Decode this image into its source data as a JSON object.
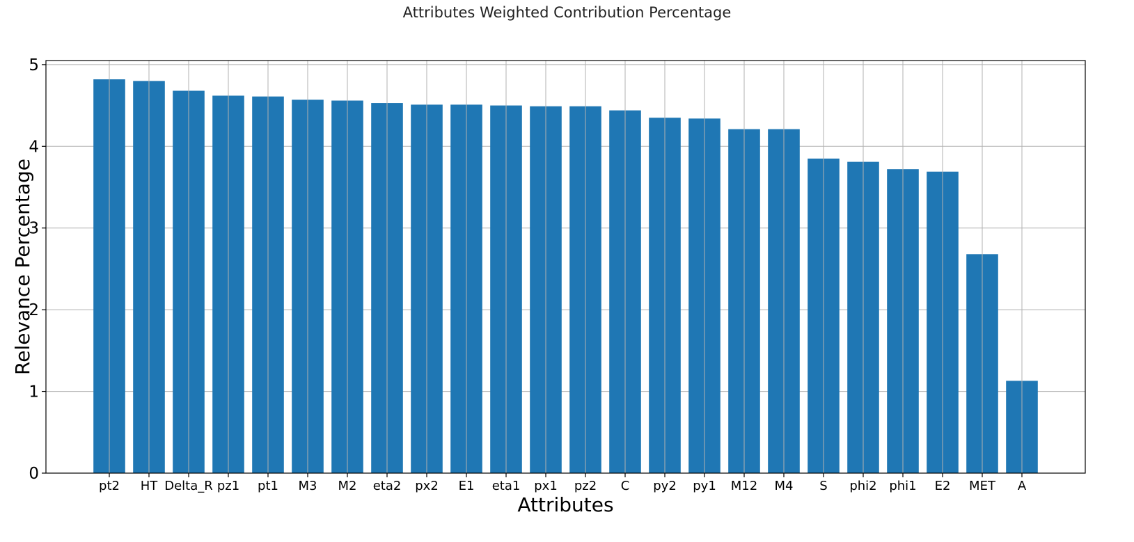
{
  "chart_data": {
    "type": "bar",
    "title": "Attributes Weighted Contribution Percentage",
    "xlabel": "Attributes",
    "ylabel": "Relevance Percentage",
    "categories": [
      "pt2",
      "HT",
      "Delta_R",
      "pz1",
      "pt1",
      "M3",
      "M2",
      "eta2",
      "px2",
      "E1",
      "eta1",
      "px1",
      "pz2",
      "C",
      "py2",
      "py1",
      "M12",
      "M4",
      "S",
      "phi2",
      "phi1",
      "E2",
      "MET",
      "A"
    ],
    "values": [
      4.82,
      4.8,
      4.68,
      4.62,
      4.61,
      4.57,
      4.56,
      4.53,
      4.51,
      4.51,
      4.5,
      4.49,
      4.49,
      4.44,
      4.35,
      4.34,
      4.21,
      4.21,
      3.85,
      3.81,
      3.72,
      3.69,
      2.68,
      1.13
    ],
    "yticks": [
      0,
      1,
      2,
      3,
      4,
      5
    ],
    "ylim": [
      0,
      5.05
    ],
    "grid": true,
    "bar_color": "#1f77b4",
    "grid_color": "#b0b0b0"
  }
}
